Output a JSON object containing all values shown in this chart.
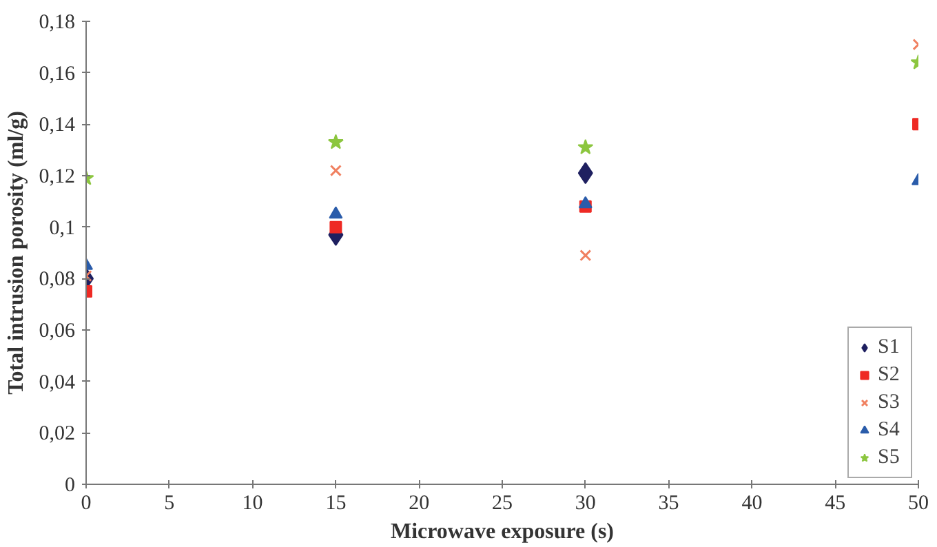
{
  "chart_data": {
    "type": "scatter",
    "xlabel": "Microwave exposure (s)",
    "ylabel": "Total intrusion porosity (ml/g)",
    "xlim": [
      0,
      50
    ],
    "xticks": [
      0,
      5,
      10,
      15,
      20,
      25,
      30,
      35,
      40,
      45,
      50
    ],
    "ylim": [
      0,
      0.18
    ],
    "yticks": [
      0,
      {
        "value": 0.02,
        "label": "0,02"
      },
      {
        "value": 0.04,
        "label": "0,04"
      },
      {
        "value": 0.06,
        "label": "0,06"
      },
      {
        "value": 0.08,
        "label": "0,08"
      },
      {
        "value": 0.1,
        "label": "0,1"
      },
      {
        "value": 0.12,
        "label": "0,12"
      },
      {
        "value": 0.14,
        "label": "0,14"
      },
      {
        "value": 0.16,
        "label": "0,16"
      },
      {
        "value": 0.18,
        "label": "0,18"
      }
    ],
    "grid": false,
    "legend": "bottom right",
    "x": [
      0,
      15,
      30,
      50
    ],
    "series": [
      {
        "name": "S1",
        "color": "#1f2060",
        "marker": "diamond",
        "values": [
          0.08,
          0.097,
          0.121,
          null
        ]
      },
      {
        "name": "S2",
        "color": "#ee2a24",
        "marker": "square",
        "values": [
          0.075,
          0.1,
          0.108,
          0.14
        ]
      },
      {
        "name": "S3",
        "color": "#f08060",
        "marker": "cross",
        "values": [
          0.081,
          0.122,
          0.089,
          0.171
        ]
      },
      {
        "name": "S4",
        "color": "#2a5caa",
        "marker": "triangle",
        "values": [
          0.085,
          0.105,
          0.109,
          0.118
        ]
      },
      {
        "name": "S5",
        "color": "#8cc63f",
        "marker": "star",
        "values": [
          0.119,
          0.133,
          0.131,
          0.164
        ]
      }
    ]
  }
}
